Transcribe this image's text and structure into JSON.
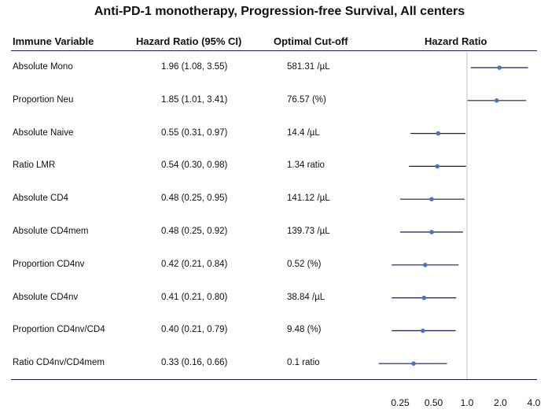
{
  "chart_data": {
    "type": "forest",
    "title": "Anti-PD-1 monotherapy, Progression-free Survival, All centers",
    "columns": [
      "Immune Variable",
      "Hazard Ratio (95% CI)",
      "Optimal Cut-off",
      "Hazard Ratio"
    ],
    "rows": [
      {
        "variable": "Absolute Mono",
        "hr_text": "1.96 (1.08, 3.55)",
        "cutoff": "581.31 /µL",
        "hr": 1.96,
        "lo": 1.08,
        "hi": 3.55
      },
      {
        "variable": "Proportion Neu",
        "hr_text": "1.85 (1.01, 3.41)",
        "cutoff": "76.57 (%)",
        "hr": 1.85,
        "lo": 1.01,
        "hi": 3.41
      },
      {
        "variable": "Absolute Naive",
        "hr_text": "0.55 (0.31, 0.97)",
        "cutoff": "14.4 /µL",
        "hr": 0.55,
        "lo": 0.31,
        "hi": 0.97
      },
      {
        "variable": "Ratio LMR",
        "hr_text": "0.54 (0.30, 0.98)",
        "cutoff": "1.34 ratio",
        "hr": 0.54,
        "lo": 0.3,
        "hi": 0.98
      },
      {
        "variable": "Absolute CD4",
        "hr_text": "0.48 (0.25, 0.95)",
        "cutoff": "141.12 /µL",
        "hr": 0.48,
        "lo": 0.25,
        "hi": 0.95
      },
      {
        "variable": "Absolute CD4mem",
        "hr_text": "0.48 (0.25, 0.92)",
        "cutoff": "139.73 /µL",
        "hr": 0.48,
        "lo": 0.25,
        "hi": 0.92
      },
      {
        "variable": "Proportion CD4nv",
        "hr_text": "0.42 (0.21, 0.84)",
        "cutoff": "0.52 (%)",
        "hr": 0.42,
        "lo": 0.21,
        "hi": 0.84
      },
      {
        "variable": "Absolute CD4nv",
        "hr_text": "0.41 (0.21, 0.80)",
        "cutoff": "38.84 /µL",
        "hr": 0.41,
        "lo": 0.21,
        "hi": 0.8
      },
      {
        "variable": "Proportion CD4nv/CD4",
        "hr_text": "0.40 (0.21, 0.79)",
        "cutoff": "9.48 (%)",
        "hr": 0.4,
        "lo": 0.21,
        "hi": 0.79
      },
      {
        "variable": "Ratio CD4nv/CD4mem",
        "hr_text": "0.33 (0.16, 0.66)",
        "cutoff": "0.1 ratio",
        "hr": 0.33,
        "lo": 0.16,
        "hi": 0.66
      }
    ],
    "x_scale": "log",
    "x_ticks": [
      0.25,
      0.5,
      1.0,
      2.0,
      4.0
    ],
    "x_tick_labels": [
      "0.25",
      "0.50",
      "1.0",
      "2.0",
      "4.0"
    ],
    "reference_line": 1.0,
    "colors": {
      "point": "#4a72c4",
      "ci_line": "#1a1f4a",
      "reference": "#cccccc",
      "rule": "#1a1f4a"
    }
  }
}
